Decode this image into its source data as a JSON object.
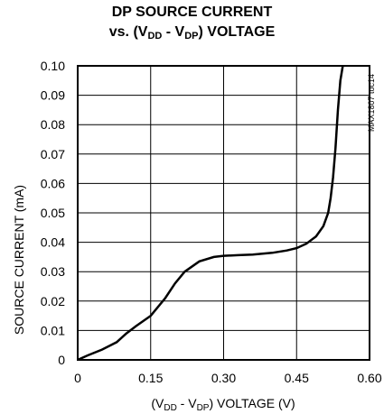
{
  "chart_data": {
    "type": "line",
    "title_line1": "DP SOURCE CURRENT",
    "title_line2": {
      "prefix": "vs. (V",
      "sub1": "DD",
      "mid": " - V",
      "sub2": "DP",
      "suffix": ") VOLTAGE"
    },
    "xlabel": {
      "prefix": "(V",
      "sub1": "DD",
      "mid": " - V",
      "sub2": "DP",
      "suffix": ") VOLTAGE (V)"
    },
    "ylabel": "SOURCE CURRENT (mA)",
    "side_code": "MAX1807 toc14",
    "xlim": [
      0,
      0.6
    ],
    "ylim": [
      0,
      0.1
    ],
    "x_ticks": [
      "0",
      "0.15",
      "0.30",
      "0.45",
      "0.60"
    ],
    "x_tick_values": [
      0,
      0.15,
      0.3,
      0.45,
      0.6
    ],
    "y_ticks": [
      "0",
      "0.01",
      "0.02",
      "0.03",
      "0.04",
      "0.05",
      "0.06",
      "0.07",
      "0.08",
      "0.09",
      "0.10"
    ],
    "y_tick_values": [
      0,
      0.01,
      0.02,
      0.03,
      0.04,
      0.05,
      0.06,
      0.07,
      0.08,
      0.09,
      0.1
    ],
    "grid": true,
    "color": "#000000",
    "series": [
      {
        "x": [
          0,
          0.02,
          0.05,
          0.08,
          0.1,
          0.12,
          0.15,
          0.18,
          0.2,
          0.22,
          0.25,
          0.28,
          0.3,
          0.33,
          0.36,
          0.4,
          0.43,
          0.45,
          0.47,
          0.49,
          0.505,
          0.515,
          0.52,
          0.525,
          0.53,
          0.535,
          0.54,
          0.545
        ],
        "y": [
          0,
          0.0015,
          0.0035,
          0.006,
          0.009,
          0.0115,
          0.015,
          0.021,
          0.026,
          0.03,
          0.0335,
          0.035,
          0.0354,
          0.0356,
          0.0358,
          0.0364,
          0.0372,
          0.038,
          0.0395,
          0.042,
          0.0455,
          0.05,
          0.055,
          0.062,
          0.072,
          0.085,
          0.095,
          0.1
        ]
      }
    ]
  }
}
